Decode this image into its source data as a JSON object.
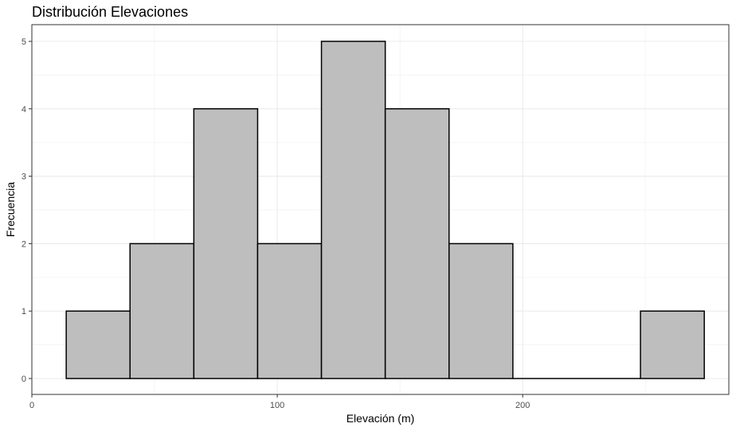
{
  "chart_data": {
    "type": "bar",
    "title": "Distribución Elevaciones",
    "xlabel": "Elevación (m)",
    "ylabel": "Frecuencia",
    "bin_edges": [
      14,
      40,
      66,
      92,
      118,
      144,
      170,
      196,
      222,
      248,
      274
    ],
    "values": [
      1,
      2,
      4,
      2,
      5,
      4,
      2,
      0,
      0,
      1
    ],
    "xlim": [
      0,
      284
    ],
    "ylim": [
      0,
      5.25
    ],
    "x_ticks": [
      0,
      100,
      200
    ],
    "x_tick_labels": [
      "0",
      "100",
      "200"
    ],
    "y_ticks": [
      0,
      1,
      2,
      3,
      4,
      5
    ],
    "y_tick_labels": [
      "0",
      "1",
      "2",
      "3",
      "4",
      "5"
    ],
    "grid": true,
    "legend": "none"
  },
  "colors": {
    "bar_fill": "#bebebe",
    "bar_stroke": "#000000",
    "grid_major": "#ebebeb",
    "grid_minor": "#f5f5f5",
    "panel_border": "#333333"
  }
}
